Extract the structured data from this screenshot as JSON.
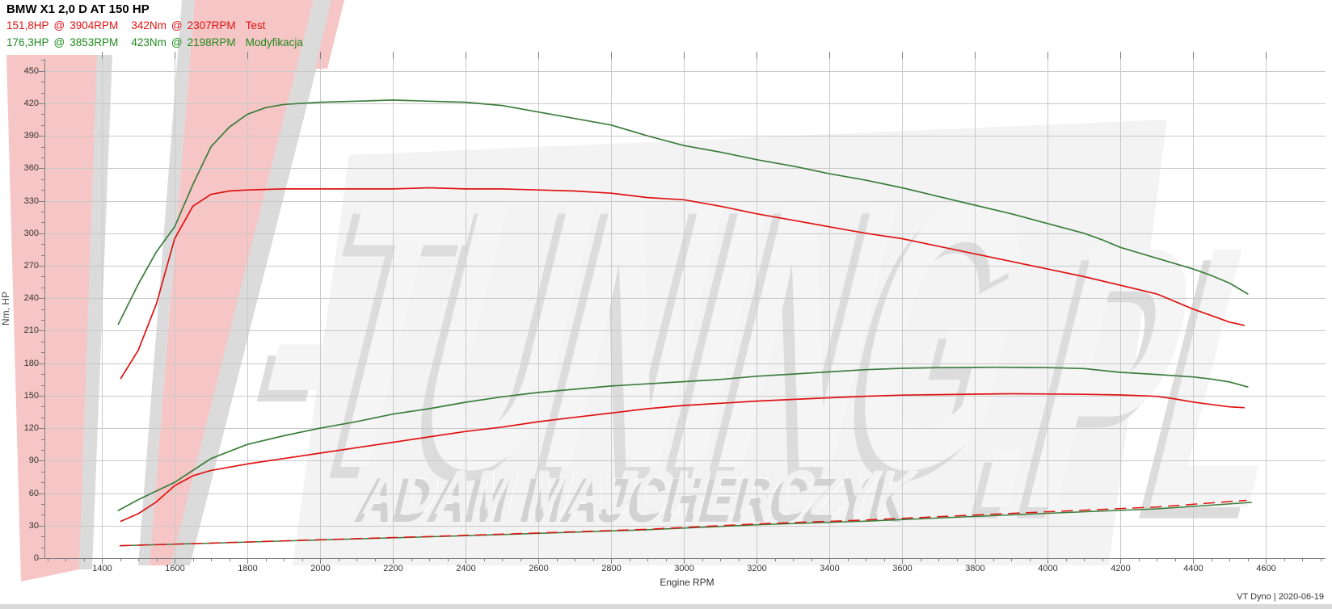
{
  "header": {
    "title": "BMW X1 2,0 D AT 150 HP",
    "series_rows": [
      {
        "power": "151,8HP",
        "at1": "@",
        "power_rpm": "3904RPM",
        "torque": "342Nm",
        "at2": "@",
        "torque_rpm": "2307RPM",
        "label": "Test",
        "color": "#e01212"
      },
      {
        "power": "176,3HP",
        "at1": "@",
        "power_rpm": "3853RPM",
        "torque": "423Nm",
        "at2": "@",
        "torque_rpm": "2198RPM",
        "label": "Modyfikacja",
        "color": "#1e8a1e"
      }
    ]
  },
  "axes": {
    "ylabel": "Nm, HP",
    "xlabel": "Engine RPM"
  },
  "footer": {
    "text": "VT Dyno | 2020-06-19"
  },
  "watermark": {
    "logo_text": "-TUNING",
    "logo_suffix": ".PL",
    "owner": "ADAM MAJCHERCZYK",
    "pink": "#f6c5c5",
    "gray": "#bdbdbd",
    "slab": "#f3f3f3"
  },
  "chart_data": {
    "type": "line",
    "title": "BMW X1 2,0 D AT 150 HP",
    "xlabel": "Engine RPM",
    "ylabel": "Nm, HP",
    "xlim": [
      1242,
      4764
    ],
    "ylim": [
      0,
      461
    ],
    "grid": true,
    "x_major_ticks": [
      1400,
      1600,
      1800,
      2000,
      2200,
      2400,
      2600,
      2800,
      3000,
      3200,
      3400,
      3600,
      3800,
      4000,
      4200,
      4400,
      4600
    ],
    "y_major_ticks": [
      0,
      30,
      60,
      90,
      120,
      150,
      180,
      210,
      240,
      270,
      300,
      330,
      360,
      390,
      420,
      450
    ],
    "x_minor_step": 50,
    "y_minor_step": 10,
    "series": [
      {
        "name": "Torque Modyfikacja",
        "unit": "Nm",
        "color": "#3b7d3b",
        "width": 1.7,
        "peak_label": "423Nm @ 2198RPM",
        "points": [
          [
            1445,
            216
          ],
          [
            1500,
            253
          ],
          [
            1550,
            283
          ],
          [
            1600,
            306
          ],
          [
            1650,
            345
          ],
          [
            1700,
            380
          ],
          [
            1750,
            398
          ],
          [
            1800,
            410
          ],
          [
            1850,
            416
          ],
          [
            1900,
            419
          ],
          [
            2000,
            421
          ],
          [
            2100,
            422
          ],
          [
            2200,
            423
          ],
          [
            2300,
            422
          ],
          [
            2400,
            421
          ],
          [
            2500,
            418
          ],
          [
            2600,
            412
          ],
          [
            2700,
            406
          ],
          [
            2800,
            400
          ],
          [
            2900,
            390
          ],
          [
            3000,
            381
          ],
          [
            3100,
            375
          ],
          [
            3200,
            368
          ],
          [
            3300,
            362
          ],
          [
            3400,
            355
          ],
          [
            3500,
            349
          ],
          [
            3600,
            342
          ],
          [
            3700,
            334
          ],
          [
            3800,
            326
          ],
          [
            3900,
            318
          ],
          [
            4000,
            309
          ],
          [
            4100,
            300
          ],
          [
            4150,
            294
          ],
          [
            4200,
            287
          ],
          [
            4300,
            277
          ],
          [
            4400,
            267
          ],
          [
            4450,
            261
          ],
          [
            4500,
            254
          ],
          [
            4550,
            244
          ]
        ]
      },
      {
        "name": "Torque Test",
        "unit": "Nm",
        "color": "#e01212",
        "width": 1.7,
        "peak_label": "342Nm @ 2307RPM",
        "points": [
          [
            1452,
            166
          ],
          [
            1500,
            192
          ],
          [
            1550,
            235
          ],
          [
            1600,
            295
          ],
          [
            1650,
            325
          ],
          [
            1700,
            336
          ],
          [
            1750,
            339
          ],
          [
            1800,
            340
          ],
          [
            1900,
            341
          ],
          [
            2000,
            341
          ],
          [
            2100,
            341
          ],
          [
            2200,
            341
          ],
          [
            2300,
            342
          ],
          [
            2400,
            341
          ],
          [
            2500,
            341
          ],
          [
            2600,
            340
          ],
          [
            2700,
            339
          ],
          [
            2800,
            337
          ],
          [
            2900,
            333
          ],
          [
            3000,
            331
          ],
          [
            3100,
            325
          ],
          [
            3200,
            318
          ],
          [
            3300,
            312
          ],
          [
            3400,
            306
          ],
          [
            3500,
            300
          ],
          [
            3600,
            295
          ],
          [
            3700,
            288
          ],
          [
            3800,
            281
          ],
          [
            3900,
            274
          ],
          [
            4000,
            267
          ],
          [
            4100,
            260
          ],
          [
            4200,
            252
          ],
          [
            4300,
            244
          ],
          [
            4400,
            230
          ],
          [
            4450,
            224
          ],
          [
            4500,
            218
          ],
          [
            4540,
            215
          ]
        ]
      },
      {
        "name": "Power Modyfikacja",
        "unit": "HP",
        "color": "#3b7d3b",
        "width": 1.7,
        "peak_label": "176,3HP @ 3853RPM",
        "points": [
          [
            1445,
            44
          ],
          [
            1500,
            54
          ],
          [
            1550,
            62
          ],
          [
            1600,
            70
          ],
          [
            1700,
            92
          ],
          [
            1800,
            105
          ],
          [
            1900,
            113
          ],
          [
            2000,
            120
          ],
          [
            2100,
            126
          ],
          [
            2200,
            133
          ],
          [
            2300,
            138
          ],
          [
            2400,
            144
          ],
          [
            2500,
            149
          ],
          [
            2600,
            153
          ],
          [
            2700,
            156
          ],
          [
            2800,
            159
          ],
          [
            2900,
            161
          ],
          [
            3000,
            163
          ],
          [
            3100,
            165
          ],
          [
            3200,
            168
          ],
          [
            3300,
            170
          ],
          [
            3400,
            172
          ],
          [
            3500,
            174
          ],
          [
            3600,
            175.3
          ],
          [
            3700,
            175.9
          ],
          [
            3800,
            176.1
          ],
          [
            3850,
            176.3
          ],
          [
            3900,
            176.2
          ],
          [
            4000,
            175.9
          ],
          [
            4100,
            175.1
          ],
          [
            4200,
            171.6
          ],
          [
            4300,
            169.6
          ],
          [
            4400,
            167.3
          ],
          [
            4450,
            165.4
          ],
          [
            4500,
            162.7
          ],
          [
            4550,
            158.1
          ]
        ]
      },
      {
        "name": "Power Test",
        "unit": "HP",
        "color": "#e01212",
        "width": 1.7,
        "peak_label": "151,8HP @ 3904RPM",
        "points": [
          [
            1452,
            34
          ],
          [
            1500,
            41
          ],
          [
            1550,
            52
          ],
          [
            1600,
            67
          ],
          [
            1650,
            76
          ],
          [
            1700,
            81
          ],
          [
            1800,
            87
          ],
          [
            1900,
            92
          ],
          [
            2000,
            97
          ],
          [
            2100,
            102
          ],
          [
            2200,
            107
          ],
          [
            2300,
            112
          ],
          [
            2400,
            117
          ],
          [
            2500,
            121
          ],
          [
            2600,
            126
          ],
          [
            2700,
            130
          ],
          [
            2800,
            134
          ],
          [
            2900,
            138
          ],
          [
            3000,
            141
          ],
          [
            3100,
            143
          ],
          [
            3200,
            145
          ],
          [
            3300,
            146.6
          ],
          [
            3400,
            148.1
          ],
          [
            3500,
            149.5
          ],
          [
            3600,
            150.5
          ],
          [
            3700,
            151
          ],
          [
            3800,
            151.4
          ],
          [
            3900,
            151.8
          ],
          [
            4000,
            151.6
          ],
          [
            4100,
            151.3
          ],
          [
            4200,
            150.7
          ],
          [
            4300,
            149.4
          ],
          [
            4350,
            147
          ],
          [
            4400,
            144.1
          ],
          [
            4450,
            141.9
          ],
          [
            4500,
            139.7
          ],
          [
            4540,
            139
          ]
        ]
      },
      {
        "name": "Loss Modyfikacja",
        "unit": "HP",
        "color": "#3b7d3b",
        "width": 1.5,
        "points": [
          [
            1450,
            11.5
          ],
          [
            1700,
            13.8
          ],
          [
            2000,
            16.8
          ],
          [
            2300,
            19.7
          ],
          [
            2600,
            22.8
          ],
          [
            2900,
            26.2
          ],
          [
            3200,
            30.8
          ],
          [
            3500,
            34.2
          ],
          [
            3800,
            38.5
          ],
          [
            4100,
            42.8
          ],
          [
            4300,
            45.5
          ],
          [
            4560,
            51.5
          ]
        ]
      },
      {
        "name": "Loss Test",
        "unit": "HP",
        "color": "#e01212",
        "width": 1.5,
        "dash": "13,9",
        "points": [
          [
            1450,
            11.5
          ],
          [
            1700,
            13.9
          ],
          [
            2000,
            17
          ],
          [
            2300,
            20
          ],
          [
            2600,
            23.2
          ],
          [
            2900,
            26.6
          ],
          [
            3200,
            31.6
          ],
          [
            3500,
            35.2
          ],
          [
            3800,
            39.8
          ],
          [
            4100,
            44.3
          ],
          [
            4300,
            47.2
          ],
          [
            4546,
            53.3
          ]
        ]
      }
    ]
  }
}
